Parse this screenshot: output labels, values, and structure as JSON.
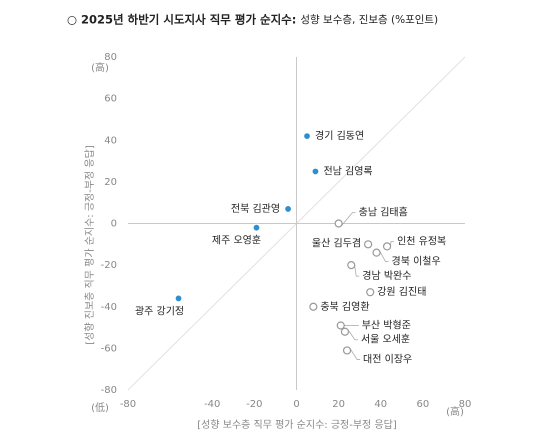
{
  "chart_data": {
    "type": "scatter",
    "title": "○ 2025년 하반기 시도지사 직무 평가 순지수:",
    "subtitle": "성향 보수층, 진보층 (%포인트)",
    "x_label": "[성향 보수층 직무 평가 순지수: 긍정-부정 응답]",
    "y_label": "[성향 진보층 직무 평가 순지수: 긍정-부정 응답]",
    "y_high_label": "(高)",
    "y_low_label": "(低)",
    "x_high_label": "(高)",
    "categories": [
      "경기 김동연",
      "전남 김영록",
      "전북 김관영",
      "제주 오영훈",
      "광주 강기정",
      "충남 김태흠",
      "울산 김두겸",
      "인천 유정복",
      "경북 이철우",
      "경남 박완수",
      "강원 김진태",
      "충북 김영환",
      "부산 박형준",
      "서울 오세훈",
      "대전 이장우"
    ],
    "x": [
      5,
      9,
      -4,
      -19,
      -56,
      20,
      34,
      43,
      38,
      26,
      35,
      8,
      21,
      23,
      24
    ],
    "values": [
      42,
      25,
      7,
      -2,
      -36,
      0,
      -10,
      -11,
      -14,
      -20,
      -33,
      -40,
      -49,
      -52,
      -61
    ],
    "point_fills": [
      "#2f8fce",
      "#2f8fce",
      "#2f8fce",
      "#2f8fce",
      "#2f8fce",
      "#ffffff",
      "#ffffff",
      "#ffffff",
      "#ffffff",
      "#ffffff",
      "#ffffff",
      "#ffffff",
      "#ffffff",
      "#ffffff",
      "#ffffff"
    ],
    "point_strokes": [
      "#ffffff",
      "#ffffff",
      "#ffffff",
      "#ffffff",
      "#ffffff",
      "#999999",
      "#999999",
      "#999999",
      "#999999",
      "#999999",
      "#999999",
      "#999999",
      "#999999",
      "#999999",
      "#999999"
    ],
    "xlim": [
      -80,
      80
    ],
    "ylim": [
      -80,
      80
    ],
    "xticks": [
      -80,
      -40,
      -20,
      0,
      20,
      40,
      60,
      80
    ],
    "yticks": [
      -80,
      -60,
      -40,
      -20,
      0,
      20,
      40,
      60,
      80
    ],
    "diagonal": true,
    "zero_lines": true
  }
}
